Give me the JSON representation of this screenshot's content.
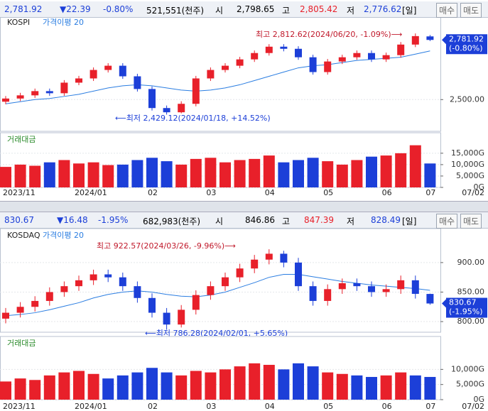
{
  "kospi_header": {
    "last": "2,781.92",
    "change": "▼22.39",
    "pct": "-0.80%",
    "volume": "521,551(천주)",
    "open_label": "시",
    "open": "2,798.65",
    "high_label": "고",
    "high": "2,805.42",
    "low_label": "저",
    "low": "2,776.62",
    "period": "[일]",
    "buy": "매수",
    "sell": "매도"
  },
  "kosdaq_header": {
    "last": "830.67",
    "change": "▼16.48",
    "pct": "-1.95%",
    "volume": "682,983(천주)",
    "open_label": "시",
    "open": "846.86",
    "high_label": "고",
    "high": "847.39",
    "low_label": "저",
    "low": "828.49",
    "period": "[일]",
    "buy": "매수",
    "sell": "매도"
  },
  "chart_data": [
    {
      "type": "candlestick",
      "title": "KOSPI",
      "ma_name": "가격이평 20",
      "up_color": "#e8202a",
      "down_color": "#1c3fd8",
      "ma_color": "#2a7de1",
      "open": [
        2490,
        2505,
        2520,
        2540,
        2530,
        2580,
        2600,
        2640,
        2660,
        2610,
        2550,
        2460,
        2440,
        2480,
        2600,
        2640,
        2660,
        2690,
        2720,
        2750,
        2740,
        2700,
        2630,
        2680,
        2700,
        2720,
        2690,
        2710,
        2760,
        2798.65
      ],
      "high": [
        2517,
        2532,
        2552,
        2552,
        2592,
        2612,
        2652,
        2672,
        2672,
        2622,
        2562,
        2472,
        2492,
        2612,
        2652,
        2672,
        2702,
        2732,
        2762,
        2762,
        2752,
        2712,
        2692,
        2712,
        2732,
        2732,
        2722,
        2772,
        2812.62,
        2805.42
      ],
      "low": [
        2478,
        2493,
        2508,
        2518,
        2518,
        2568,
        2588,
        2628,
        2598,
        2538,
        2448,
        2429.12,
        2435,
        2468,
        2588,
        2628,
        2648,
        2678,
        2708,
        2728,
        2688,
        2618,
        2618,
        2668,
        2688,
        2678,
        2678,
        2698,
        2748,
        2776.62
      ],
      "close": [
        2505,
        2520,
        2540,
        2530,
        2580,
        2600,
        2640,
        2660,
        2610,
        2550,
        2460,
        2440,
        2480,
        2600,
        2640,
        2660,
        2690,
        2720,
        2750,
        2740,
        2700,
        2630,
        2680,
        2700,
        2720,
        2690,
        2710,
        2760,
        2800,
        2781.92
      ],
      "ma": [
        2480,
        2490,
        2500,
        2505,
        2515,
        2525,
        2540,
        2555,
        2565,
        2570,
        2565,
        2555,
        2545,
        2540,
        2545,
        2555,
        2570,
        2590,
        2610,
        2630,
        2650,
        2660,
        2665,
        2675,
        2685,
        2690,
        2695,
        2700,
        2715,
        2730
      ],
      "ylim": [
        2350,
        2870
      ],
      "yticks": [
        {
          "value": 2500,
          "label": "2,500.00"
        }
      ],
      "last_label": "2,781.92",
      "last_pct": "(-0.80%)",
      "max_note": "최고 2,812.62(2024/06/20, -1.09%)⟶",
      "min_note": "⟵최저 2,429.12(2024/01/18, +14.52%)"
    },
    {
      "type": "bar",
      "title": "거래대금",
      "up_color": "#e8202a",
      "down_color": "#1c3fd8",
      "values": [
        9000,
        10000,
        9500,
        11000,
        12000,
        10500,
        11000,
        9800,
        10000,
        12000,
        13000,
        11500,
        10000,
        12500,
        13000,
        11000,
        12000,
        12500,
        14000,
        11000,
        12000,
        13000,
        11500,
        10000,
        12000,
        13500,
        14000,
        15000,
        18500,
        10500
      ],
      "ylim": [
        0,
        21500
      ],
      "yticks": [
        {
          "value": 15000,
          "label": "15,000G"
        },
        {
          "value": 10000,
          "label": "10,000G"
        },
        {
          "value": 5000,
          "label": "5,000G"
        },
        {
          "value": 0,
          "label": "0G"
        }
      ],
      "categories": [
        "2023/11",
        null,
        null,
        null,
        null,
        "2024/01",
        null,
        null,
        null,
        null,
        "02",
        null,
        null,
        null,
        "03",
        null,
        null,
        null,
        "04",
        null,
        null,
        null,
        "05",
        null,
        null,
        null,
        "06",
        null,
        null,
        "07"
      ],
      "date_label": "07/02"
    },
    {
      "type": "candlestick",
      "title": "KOSDAQ",
      "ma_name": "가격이평 20",
      "up_color": "#e8202a",
      "down_color": "#1c3fd8",
      "ma_color": "#2a7de1",
      "open": [
        805,
        815,
        825,
        835,
        850,
        860,
        870,
        880,
        875,
        860,
        840,
        815,
        795,
        820,
        845,
        860,
        875,
        890,
        905,
        915,
        900,
        860,
        835,
        855,
        865,
        860,
        850,
        855,
        870,
        846.86
      ],
      "high": [
        823,
        833,
        843,
        858,
        868,
        878,
        888,
        888,
        883,
        868,
        848,
        823,
        828,
        853,
        868,
        883,
        898,
        913,
        922.57,
        920,
        908,
        868,
        863,
        873,
        873,
        868,
        863,
        878,
        878,
        847.39
      ],
      "low": [
        797,
        807,
        817,
        827,
        842,
        852,
        862,
        867,
        852,
        832,
        807,
        786.28,
        790,
        812,
        837,
        852,
        867,
        882,
        897,
        892,
        852,
        827,
        827,
        847,
        852,
        842,
        842,
        847,
        839,
        828.49
      ],
      "close": [
        815,
        825,
        835,
        850,
        860,
        870,
        880,
        875,
        860,
        840,
        815,
        795,
        820,
        845,
        860,
        875,
        890,
        905,
        915,
        900,
        860,
        835,
        855,
        865,
        860,
        850,
        855,
        870,
        847,
        830.67
      ],
      "ma": [
        810,
        812,
        815,
        820,
        826,
        832,
        840,
        846,
        850,
        852,
        850,
        846,
        843,
        842,
        845,
        850,
        858,
        866,
        875,
        880,
        880,
        876,
        872,
        868,
        865,
        862,
        860,
        858,
        856,
        853
      ],
      "ylim": [
        782,
        948
      ],
      "yticks": [
        {
          "value": 900,
          "label": "900.00"
        },
        {
          "value": 850,
          "label": "850.00"
        },
        {
          "value": 800,
          "label": "800.00"
        }
      ],
      "last_label": "830.67",
      "last_pct": "(-1.95%)",
      "max_note": "최고 922.57(2024/03/26, -9.96%)⟶",
      "min_note": "⟵최저 786.28(2024/02/01, +5.65%)"
    },
    {
      "type": "bar",
      "title": "거래대금",
      "up_color": "#e8202a",
      "down_color": "#1c3fd8",
      "values": [
        6000,
        7000,
        6500,
        8000,
        9000,
        9500,
        8500,
        7000,
        8000,
        9000,
        10500,
        9000,
        8000,
        9500,
        9000,
        10000,
        11000,
        12000,
        11500,
        10000,
        12000,
        11000,
        9000,
        8500,
        8000,
        7500,
        8000,
        9000,
        8000,
        7500
      ],
      "ylim": [
        0,
        19000
      ],
      "yticks": [
        {
          "value": 10000,
          "label": "10,000G"
        },
        {
          "value": 5000,
          "label": "5,000G"
        },
        {
          "value": 0,
          "label": "0G"
        }
      ],
      "categories": [
        "2023/11",
        null,
        null,
        null,
        null,
        "2024/01",
        null,
        null,
        null,
        null,
        "02",
        null,
        null,
        null,
        "03",
        null,
        null,
        null,
        "04",
        null,
        null,
        null,
        "05",
        null,
        null,
        null,
        "06",
        null,
        null,
        "07"
      ],
      "date_label": "07/02"
    }
  ]
}
